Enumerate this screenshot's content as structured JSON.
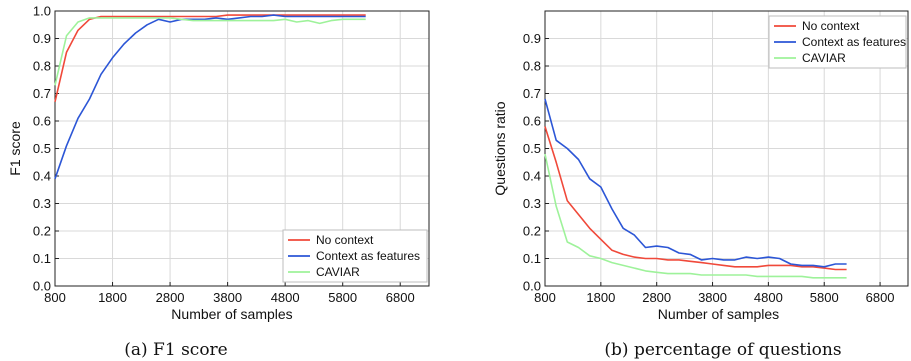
{
  "colors": {
    "series": [
      "#f0493a",
      "#2c56d6",
      "#9ef29a"
    ],
    "grid": "#d9d9d9",
    "frame": "#222222"
  },
  "chart_data": [
    {
      "type": "line",
      "caption": "(a) F1 score",
      "xlabel": "Number of samples",
      "ylabel": "F1 score",
      "xlim": [
        800,
        7300
      ],
      "ylim": [
        0,
        1
      ],
      "xticks": [
        800,
        1800,
        2800,
        3800,
        4800,
        5800,
        6800
      ],
      "yticks": [
        0.0,
        0.1,
        0.2,
        0.3,
        0.4,
        0.5,
        0.6,
        0.7,
        0.8,
        0.9,
        1.0
      ],
      "grid": true,
      "legend": "bottom-right",
      "series": [
        {
          "name": "No context",
          "x": [
            800,
            1000,
            1200,
            1400,
            1600,
            1800,
            2000,
            2200,
            2400,
            2600,
            2800,
            3000,
            3200,
            3400,
            3600,
            3800,
            4000,
            4200,
            4400,
            4600,
            4800,
            5000,
            5200,
            5400,
            5600,
            5800,
            6000,
            6200
          ],
          "y": [
            0.67,
            0.85,
            0.93,
            0.97,
            0.98,
            0.98,
            0.98,
            0.98,
            0.98,
            0.98,
            0.98,
            0.98,
            0.98,
            0.98,
            0.98,
            0.985,
            0.985,
            0.985,
            0.985,
            0.985,
            0.985,
            0.985,
            0.985,
            0.985,
            0.985,
            0.985,
            0.985,
            0.985
          ]
        },
        {
          "name": "Context as features",
          "x": [
            800,
            1000,
            1200,
            1400,
            1600,
            1800,
            2000,
            2200,
            2400,
            2600,
            2800,
            3000,
            3200,
            3400,
            3600,
            3800,
            4000,
            4200,
            4400,
            4600,
            4800,
            5000,
            5200,
            5400,
            5600,
            5800,
            6000,
            6200
          ],
          "y": [
            0.39,
            0.51,
            0.61,
            0.68,
            0.77,
            0.83,
            0.88,
            0.92,
            0.95,
            0.97,
            0.96,
            0.97,
            0.97,
            0.97,
            0.975,
            0.97,
            0.975,
            0.98,
            0.98,
            0.985,
            0.98,
            0.98,
            0.98,
            0.98,
            0.98,
            0.98,
            0.98,
            0.98
          ]
        },
        {
          "name": "CAVIAR",
          "x": [
            800,
            1000,
            1200,
            1400,
            1600,
            1800,
            2000,
            2200,
            2400,
            2600,
            2800,
            3000,
            3200,
            3400,
            3600,
            3800,
            4000,
            4200,
            4400,
            4600,
            4800,
            5000,
            5200,
            5400,
            5600,
            5800,
            6000,
            6200
          ],
          "y": [
            0.73,
            0.91,
            0.96,
            0.975,
            0.975,
            0.975,
            0.975,
            0.975,
            0.975,
            0.975,
            0.975,
            0.97,
            0.965,
            0.965,
            0.965,
            0.965,
            0.965,
            0.965,
            0.965,
            0.965,
            0.97,
            0.96,
            0.965,
            0.955,
            0.965,
            0.97,
            0.97,
            0.97
          ]
        }
      ]
    },
    {
      "type": "line",
      "caption": "(b) percentage of questions",
      "xlabel": "Number of samples",
      "ylabel": "Questions ratio",
      "xlim": [
        800,
        7300
      ],
      "ylim": [
        0,
        1
      ],
      "xticks": [
        800,
        1800,
        2800,
        3800,
        4800,
        5800,
        6800
      ],
      "yticks": [
        0.0,
        0.1,
        0.2,
        0.3,
        0.4,
        0.5,
        0.6,
        0.7,
        0.8,
        0.9
      ],
      "grid": true,
      "legend": "top-right",
      "series": [
        {
          "name": "No context",
          "x": [
            800,
            1000,
            1200,
            1400,
            1600,
            1800,
            2000,
            2200,
            2400,
            2600,
            2800,
            3000,
            3200,
            3400,
            3600,
            3800,
            4000,
            4200,
            4400,
            4600,
            4800,
            5000,
            5200,
            5400,
            5600,
            5800,
            6000,
            6200
          ],
          "y": [
            0.58,
            0.45,
            0.31,
            0.26,
            0.21,
            0.17,
            0.13,
            0.115,
            0.105,
            0.1,
            0.1,
            0.095,
            0.095,
            0.09,
            0.085,
            0.08,
            0.075,
            0.07,
            0.07,
            0.07,
            0.075,
            0.075,
            0.075,
            0.07,
            0.07,
            0.065,
            0.06,
            0.06
          ]
        },
        {
          "name": "Context as features",
          "x": [
            800,
            1000,
            1200,
            1400,
            1600,
            1800,
            2000,
            2200,
            2400,
            2600,
            2800,
            3000,
            3200,
            3400,
            3600,
            3800,
            4000,
            4200,
            4400,
            4600,
            4800,
            5000,
            5200,
            5400,
            5600,
            5800,
            6000,
            6200
          ],
          "y": [
            0.68,
            0.53,
            0.5,
            0.46,
            0.39,
            0.36,
            0.28,
            0.21,
            0.185,
            0.14,
            0.145,
            0.14,
            0.12,
            0.115,
            0.095,
            0.1,
            0.095,
            0.095,
            0.105,
            0.1,
            0.105,
            0.1,
            0.08,
            0.075,
            0.075,
            0.07,
            0.08,
            0.08
          ]
        },
        {
          "name": "CAVIAR",
          "x": [
            800,
            1000,
            1200,
            1400,
            1600,
            1800,
            2000,
            2200,
            2400,
            2600,
            2800,
            3000,
            3200,
            3400,
            3600,
            3800,
            4000,
            4200,
            4400,
            4600,
            4800,
            5000,
            5200,
            5400,
            5600,
            5800,
            6000,
            6200
          ],
          "y": [
            0.48,
            0.29,
            0.16,
            0.14,
            0.11,
            0.1,
            0.085,
            0.075,
            0.065,
            0.055,
            0.05,
            0.045,
            0.045,
            0.045,
            0.04,
            0.04,
            0.04,
            0.04,
            0.04,
            0.035,
            0.035,
            0.035,
            0.035,
            0.035,
            0.03,
            0.03,
            0.03,
            0.03
          ]
        }
      ]
    }
  ]
}
